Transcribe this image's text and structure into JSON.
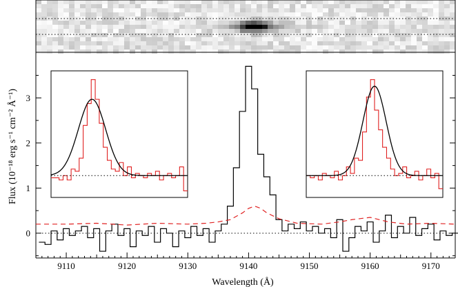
{
  "chart_data": {
    "type": "line",
    "xlabel": "Wavelength (Å)",
    "ylabel": "Flux (10⁻¹⁸ erg s⁻¹ cm⁻² Å⁻¹)",
    "xlim": [
      9105,
      9174
    ],
    "ylim": [
      -0.55,
      3.95
    ],
    "x_ticks": [
      "9110",
      "9120",
      "9130",
      "9140",
      "9150",
      "9160",
      "9170"
    ],
    "y_ticks": [
      "0",
      "1",
      "2",
      "3"
    ],
    "grid": false,
    "series": [
      {
        "style": "black histogram (flux)",
        "color": "#000000",
        "x": [
          9106,
          9107,
          9108,
          9109,
          9110,
          9111,
          9112,
          9113,
          9114,
          9115,
          9116,
          9117,
          9118,
          9119,
          9120,
          9121,
          9122,
          9123,
          9124,
          9125,
          9126,
          9127,
          9128,
          9129,
          9130,
          9131,
          9132,
          9133,
          9134,
          9135,
          9136,
          9137,
          9138,
          9139,
          9140,
          9141,
          9142,
          9143,
          9144,
          9145,
          9146,
          9147,
          9148,
          9149,
          9150,
          9151,
          9152,
          9153,
          9154,
          9155,
          9156,
          9157,
          9158,
          9159,
          9160,
          9161,
          9162,
          9163,
          9164,
          9165,
          9166,
          9167,
          9168,
          9169,
          9170,
          9171,
          9172,
          9173,
          9174
        ],
        "y": [
          -0.2,
          -0.25,
          0.05,
          -0.15,
          0.1,
          -0.05,
          0.05,
          0.15,
          -0.1,
          0.1,
          -0.4,
          0.05,
          0.2,
          -0.05,
          0.1,
          -0.3,
          0.05,
          -0.05,
          0.15,
          -0.2,
          0.1,
          0.0,
          -0.3,
          0.05,
          -0.1,
          0.15,
          -0.05,
          0.1,
          -0.2,
          0.05,
          0.2,
          0.6,
          1.45,
          2.7,
          3.7,
          3.2,
          1.75,
          1.25,
          0.85,
          0.3,
          0.05,
          0.2,
          0.1,
          0.25,
          0.05,
          0.15,
          0.0,
          0.1,
          -0.1,
          0.3,
          -0.4,
          -0.1,
          0.15,
          0.05,
          0.25,
          -0.2,
          0.05,
          0.4,
          -0.1,
          0.15,
          0.0,
          0.35,
          -0.05,
          0.1,
          0.2,
          -0.15,
          0.05,
          -0.05,
          0.0
        ]
      },
      {
        "style": "red dashed (error)",
        "color": "#e02020",
        "x": [
          9105,
          9110,
          9115,
          9120,
          9125,
          9130,
          9133,
          9135,
          9137,
          9139,
          9140,
          9141,
          9142,
          9143,
          9145,
          9148,
          9152,
          9155,
          9157,
          9160,
          9163,
          9166,
          9170,
          9174
        ],
        "y": [
          0.2,
          0.2,
          0.22,
          0.18,
          0.22,
          0.2,
          0.22,
          0.25,
          0.3,
          0.45,
          0.55,
          0.6,
          0.55,
          0.45,
          0.32,
          0.22,
          0.2,
          0.25,
          0.3,
          0.35,
          0.25,
          0.2,
          0.22,
          0.2
        ]
      }
    ],
    "insets": [
      {
        "position": "left",
        "hist": [
          1.05,
          1.05,
          1.0,
          1.1,
          1.0,
          1.25,
          1.2,
          1.5,
          2.25,
          2.75,
          3.3,
          2.85,
          2.3,
          1.75,
          1.45,
          1.25,
          1.2,
          1.4,
          1.1,
          1.3,
          1.05,
          1.15,
          1.1,
          1.05,
          1.15,
          1.1,
          1.2,
          1.0,
          1.1,
          1.15,
          1.05,
          1.1,
          1.3,
          0.75
        ],
        "fit": {
          "peak": 2.85,
          "center": 0.3,
          "sigma": 0.1,
          "base": 1.1
        }
      },
      {
        "position": "right",
        "hist": [
          1.1,
          1.05,
          1.1,
          1.0,
          1.15,
          1.1,
          1.05,
          1.2,
          1.0,
          1.1,
          1.3,
          1.15,
          1.5,
          1.45,
          2.1,
          2.9,
          3.3,
          2.6,
          2.15,
          1.75,
          1.5,
          1.25,
          1.1,
          1.15,
          1.3,
          1.05,
          1.1,
          1.2,
          1.0,
          1.1,
          1.25,
          1.05,
          1.15,
          0.8
        ],
        "fit": {
          "peak": 3.15,
          "center": 0.5,
          "sigma": 0.085,
          "base": 1.1
        }
      }
    ],
    "image_strip": {
      "colormap": "grayscale",
      "blob_x": 9141
    }
  }
}
